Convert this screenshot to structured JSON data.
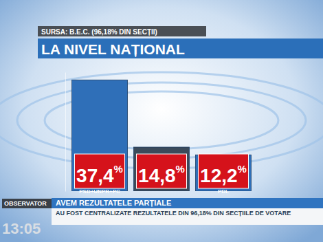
{
  "chart_data": {
    "type": "bar",
    "title": "LA NIVEL NAȚIONAL",
    "subtitle": "SURSA: B.E.C. (96,18% DIN SECȚII)",
    "categories": [
      "PSD+UNPR+PC",
      null,
      "PDL"
    ],
    "values": [
      37.4,
      14.8,
      12.2
    ],
    "value_labels": [
      "37,4%",
      "14,8%",
      "12,2%"
    ],
    "colors": [
      "#2f6fb8",
      "#3b4a5a",
      "#2f6fb8"
    ],
    "ylim": [
      0,
      40
    ],
    "data_labels": true,
    "tick_labels": "x",
    "annotations": [
      "AVEM REZULTATELE PARȚIALE",
      "AU FOST CENTRALIZATE REZULTATELE DIN 96,18% DIN SECȚIILE DE VOTARE",
      "OBSERVATOR",
      "13:05"
    ]
  }
}
